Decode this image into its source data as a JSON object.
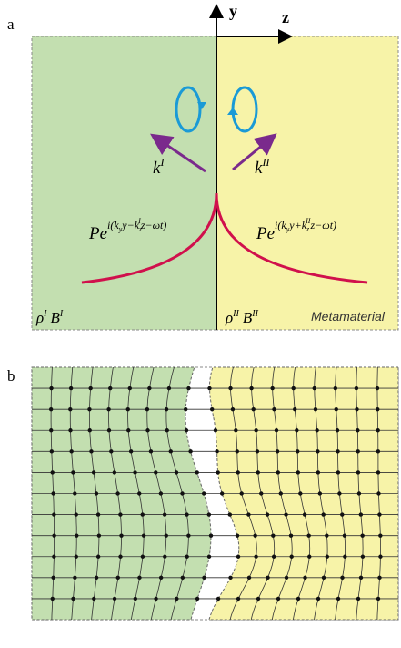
{
  "panel_a": {
    "label": "a",
    "axis_y": "y",
    "axis_z": "z",
    "k_left": {
      "base": "k",
      "sup": "I"
    },
    "k_right": {
      "base": "k",
      "sup": "II"
    },
    "wave_left": {
      "base": "Pe",
      "exp": [
        "i(k",
        "y",
        "y−k",
        "z",
        "I",
        "z−ωt)"
      ]
    },
    "wave_right": {
      "base": "Pe",
      "exp": [
        "i(k",
        "y",
        "y+k",
        "z",
        "II",
        "z−ωt)"
      ]
    },
    "medium_left": {
      "rho": "ρ",
      "rho_sup": "I",
      "b": "B",
      "b_sup": "I"
    },
    "medium_right": {
      "rho": "ρ",
      "rho_sup": "II",
      "b": "B",
      "b_sup": "II"
    },
    "metamaterial": "Metamaterial"
  },
  "panel_b": {
    "label": "b"
  }
}
